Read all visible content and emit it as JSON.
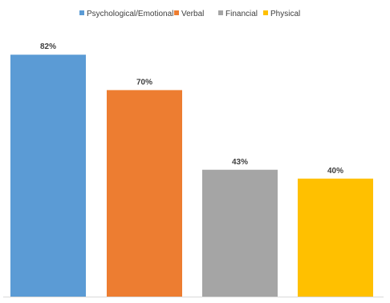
{
  "chart_data": {
    "type": "bar",
    "categories": [
      "Psychological/Emotional",
      "Verbal",
      "Financial",
      "Physical"
    ],
    "values": [
      82,
      70,
      43,
      40
    ],
    "data_labels": [
      "82%",
      "70%",
      "43%",
      "40%"
    ],
    "colors": [
      "#5b9bd5",
      "#ed7d31",
      "#a5a5a5",
      "#ffc000"
    ],
    "title": "",
    "xlabel": "",
    "ylabel": "",
    "ylim": [
      0,
      100
    ],
    "legend_position": "top",
    "grid": false,
    "axis_color": "#d9d9d9"
  }
}
